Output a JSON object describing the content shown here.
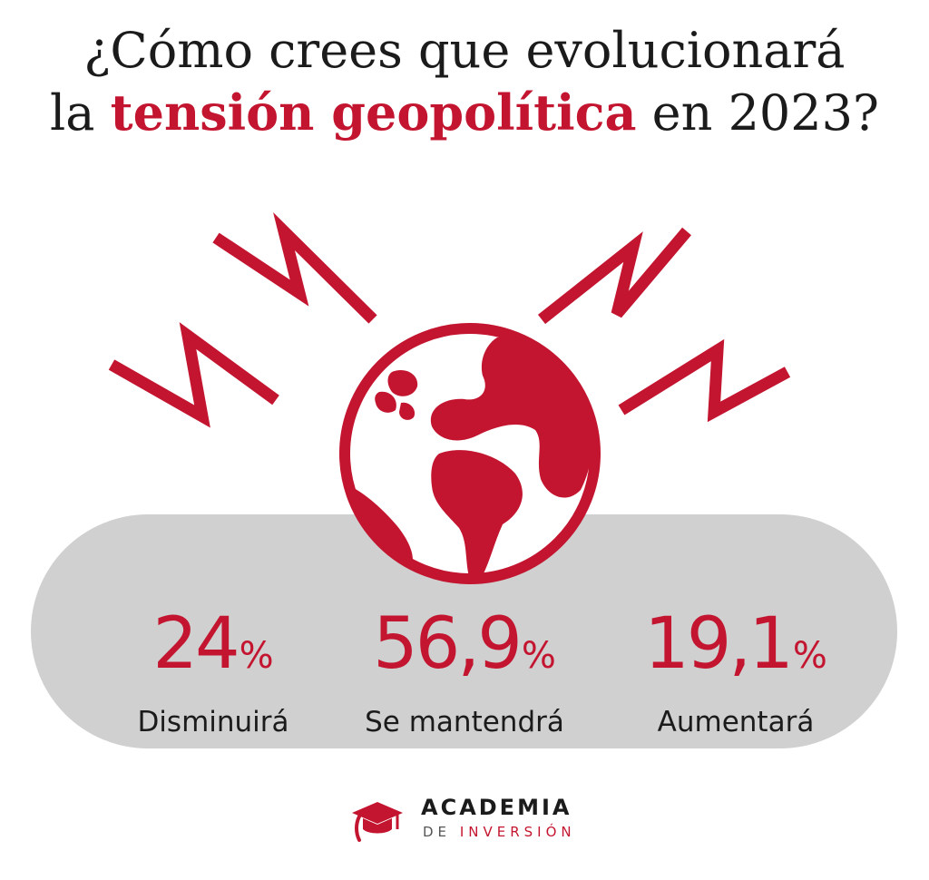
{
  "title": {
    "line1": "¿Cómo crees que evolucionará",
    "line2_pre": "la ",
    "line2_accent": "tensión geopolítica",
    "line2_post": " en 2023?"
  },
  "stats": [
    {
      "value": "24",
      "unit": "%",
      "label": "Disminuirá"
    },
    {
      "value": "56,9",
      "unit": "%",
      "label": "Se mantendrá"
    },
    {
      "value": "19,1",
      "unit": "%",
      "label": "Aumentará"
    }
  ],
  "logo": {
    "name": "ACADEMIA",
    "sub_de": "DE",
    "sub_inv": "INVERSIÓN"
  },
  "colors": {
    "accent": "#c3152f",
    "pill": "#d0d0d0",
    "text": "#1b1b1b",
    "background": "#ffffff"
  },
  "icons": [
    "globe-icon",
    "lightning-zigzag-icon",
    "graduation-cap-icon"
  ]
}
